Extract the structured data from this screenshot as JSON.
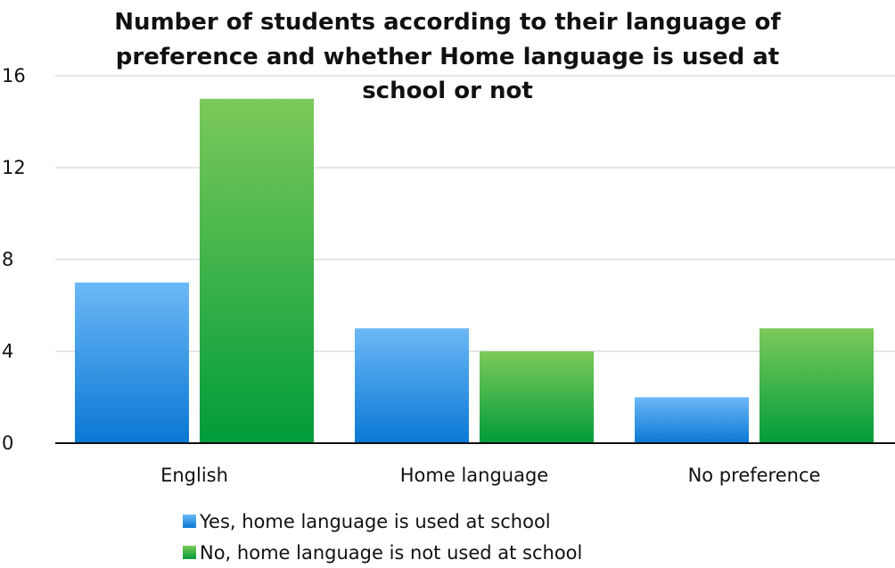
{
  "chart_data": {
    "type": "bar",
    "title_lines": [
      "Number of students according to their language of",
      "preference and whether Home language is used at",
      "school or not"
    ],
    "categories": [
      "English",
      "Home language",
      "No preference"
    ],
    "series": [
      {
        "name": "Yes, home language is used at school",
        "values": [
          7,
          5,
          2
        ]
      },
      {
        "name": "No, home language is not used at school",
        "values": [
          15,
          4,
          5
        ]
      }
    ],
    "ylim": [
      0,
      16
    ],
    "yticks": [
      "0",
      "4",
      "8",
      "12",
      "16"
    ],
    "grid": true,
    "legend_position": "bottom-center"
  },
  "colors": {
    "series_0_top": "#6cb8f6",
    "series_0_bottom": "#0a78d4",
    "series_1_top": "#7cc95a",
    "series_1_bottom": "#009c3a",
    "grid": "#cccccc",
    "axis": "#111111"
  }
}
